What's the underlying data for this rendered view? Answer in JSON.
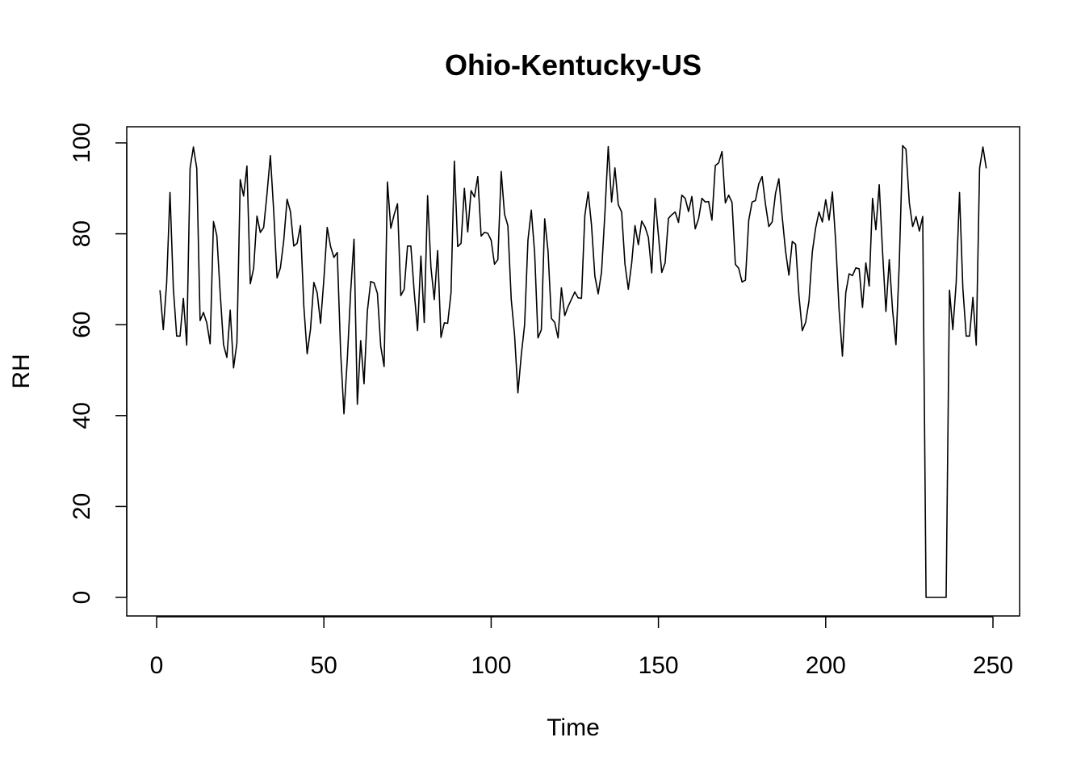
{
  "chart_data": {
    "type": "line",
    "title": "Ohio-Kentucky-US",
    "xlabel": "Time",
    "ylabel": "RH",
    "xlim": [
      0,
      250
    ],
    "ylim": [
      0,
      100
    ],
    "x_ticks": [
      "0",
      "50",
      "100",
      "150",
      "200",
      "250"
    ],
    "y_ticks": [
      "0",
      "20",
      "40",
      "60",
      "80",
      "100"
    ],
    "grid": false,
    "series": [
      {
        "color": "#000000",
        "x_start": 1,
        "values": [
          67.6,
          58.9,
          69.2,
          89.1,
          68.0,
          57.5,
          57.5,
          65.8,
          55.5,
          94.4,
          99.1,
          94.4,
          60.9,
          62.7,
          60.4,
          55.8,
          82.7,
          79.6,
          67.0,
          55.6,
          52.8,
          63.2,
          50.5,
          56.0,
          91.9,
          88.3,
          94.9,
          69.0,
          72.4,
          83.9,
          80.3,
          81.4,
          88.8,
          97.2,
          85.0,
          70.3,
          72.5,
          78.5,
          87.6,
          84.9,
          77.3,
          77.9,
          81.8,
          64.1,
          53.6,
          59.0,
          69.3,
          67.0,
          60.3,
          70.0,
          81.4,
          77.2,
          74.8,
          75.9,
          54.1,
          40.4,
          52.4,
          67.2,
          78.8,
          42.5,
          56.5,
          47.0,
          63.0,
          69.5,
          69.2,
          66.9,
          55.2,
          50.8,
          91.4,
          81.2,
          84.2,
          86.6,
          66.4,
          67.8,
          77.3,
          77.3,
          67.2,
          58.7,
          75.1,
          60.5,
          88.4,
          72.6,
          65.5,
          76.3,
          57.2,
          60.4,
          60.3,
          67.0,
          96.0,
          77.2,
          77.9,
          90.0,
          80.4,
          89.5,
          88.1,
          92.6,
          79.5,
          80.3,
          80.1,
          78.6,
          73.3,
          74.3,
          93.7,
          84.3,
          81.8,
          65.6,
          57.7,
          45.0,
          53.3,
          60.0,
          78.6,
          85.2,
          75.8,
          57.1,
          58.9,
          83.3,
          76.2,
          61.4,
          60.5,
          57.1,
          68.1,
          62.0,
          64.0,
          65.6,
          67.2,
          65.9,
          65.8,
          84.0,
          89.2,
          81.9,
          70.7,
          66.8,
          71.6,
          84.5,
          99.2,
          87.0,
          94.5,
          86.4,
          84.8,
          73.3,
          67.8,
          73.5,
          81.8,
          77.6,
          82.8,
          81.5,
          79.2,
          71.4,
          87.8,
          79.7,
          71.5,
          73.6,
          83.4,
          84.2,
          84.8,
          82.5,
          88.5,
          87.8,
          84.9,
          88.2,
          81.1,
          83.3,
          87.8,
          87.0,
          87.1,
          83.0,
          95.0,
          95.6,
          98.1,
          86.8,
          88.5,
          86.9,
          73.3,
          72.4,
          69.4,
          69.8,
          83.0,
          87.0,
          87.3,
          91.0,
          92.6,
          86.5,
          81.6,
          82.6,
          88.9,
          92.1,
          83.7,
          76.2,
          70.9,
          78.3,
          77.7,
          66.4,
          58.7,
          60.5,
          65.2,
          76.0,
          81.3,
          84.8,
          82.6,
          87.5,
          83.0,
          89.2,
          78.2,
          63.3,
          53.1,
          67.0,
          71.2,
          70.8,
          72.5,
          72.3,
          63.8,
          73.6,
          68.5,
          87.8,
          80.9,
          90.8,
          76.0,
          62.9,
          74.3,
          63.1,
          55.6,
          73.6,
          99.4,
          98.6,
          86.8,
          81.6,
          83.8,
          80.6,
          83.8,
          0.0,
          0.0,
          0.0,
          0.0,
          0.0,
          0.0,
          0.0,
          67.6,
          58.9,
          69.2,
          89.1,
          68.0,
          57.5,
          57.5,
          66.0,
          55.5,
          94.4,
          99.1,
          94.4
        ]
      }
    ]
  }
}
